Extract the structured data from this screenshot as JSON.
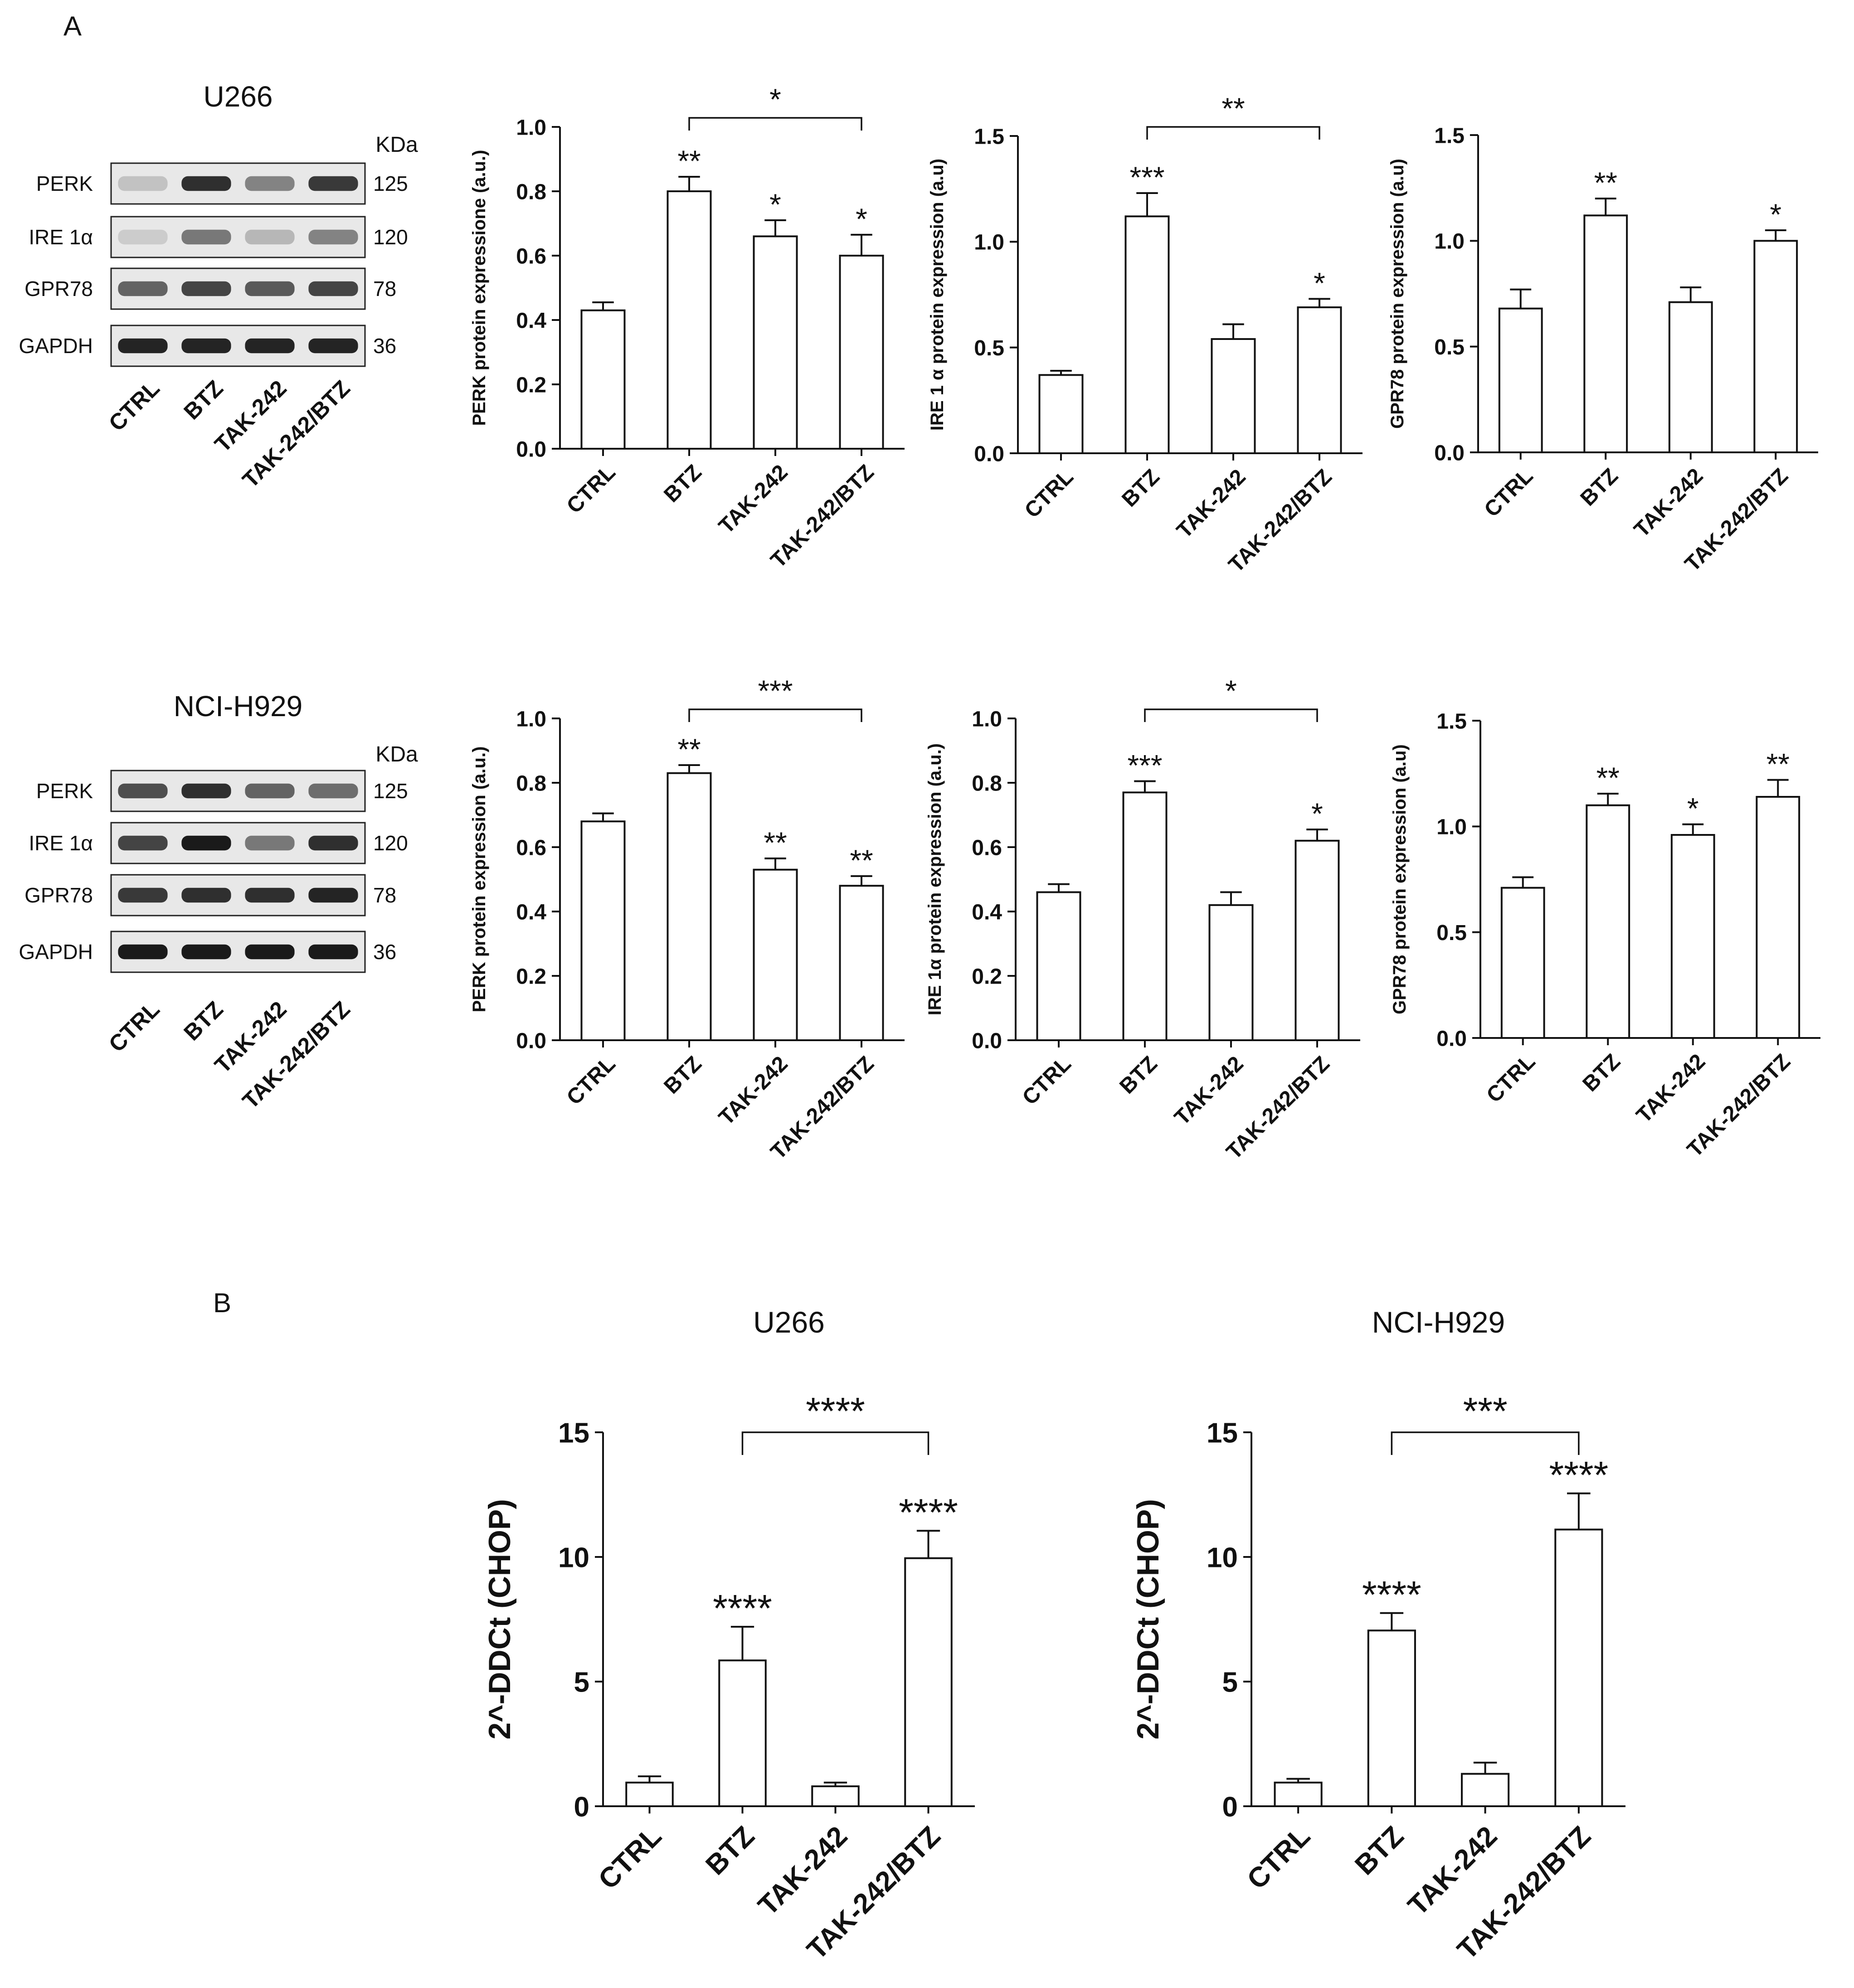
{
  "panel_labels": {
    "a": "A",
    "b": "B"
  },
  "blots": [
    {
      "cell_line": "U266",
      "kda_label": "KDa",
      "rows": [
        {
          "label": "PERK",
          "kda": "125",
          "intensity": [
            0.15,
            0.85,
            0.45,
            0.8
          ]
        },
        {
          "label": "IRE 1α",
          "kda": "120",
          "intensity": [
            0.1,
            0.5,
            0.2,
            0.45
          ]
        },
        {
          "label": "GPR78",
          "kda": "78",
          "intensity": [
            0.6,
            0.75,
            0.65,
            0.75
          ]
        },
        {
          "label": "GAPDH",
          "kda": "36",
          "intensity": [
            0.9,
            0.9,
            0.9,
            0.9
          ]
        }
      ],
      "lanes": [
        "CTRL",
        "BTZ",
        "TAK-242",
        "TAK-242/BTZ"
      ]
    },
    {
      "cell_line": "NCI-H929",
      "kda_label": "KDa",
      "rows": [
        {
          "label": "PERK",
          "kda": "125",
          "intensity": [
            0.7,
            0.85,
            0.6,
            0.55
          ]
        },
        {
          "label": "IRE 1α",
          "kda": "120",
          "intensity": [
            0.75,
            0.95,
            0.5,
            0.85
          ]
        },
        {
          "label": "GPR78",
          "kda": "78",
          "intensity": [
            0.8,
            0.85,
            0.85,
            0.9
          ]
        },
        {
          "label": "GAPDH",
          "kda": "36",
          "intensity": [
            0.95,
            0.95,
            0.95,
            0.95
          ]
        }
      ],
      "lanes": [
        "CTRL",
        "BTZ",
        "TAK-242",
        "TAK-242/BTZ"
      ]
    }
  ],
  "chart_data": [
    {
      "type": "bar",
      "title": "",
      "ylabel": "PERK protein expressione (a.u.)",
      "xlabel": "",
      "categories": [
        "CTRL",
        "BTZ",
        "TAK-242",
        "TAK-242/BTZ"
      ],
      "values": [
        0.43,
        0.8,
        0.66,
        0.6
      ],
      "errors": [
        0.025,
        0.045,
        0.05,
        0.065
      ],
      "ylim": [
        0,
        1.0
      ],
      "yticks": [
        "0.0",
        "0.2",
        "0.4",
        "0.6",
        "0.8",
        "1.0"
      ],
      "stars": [
        "",
        "**",
        "*",
        "*"
      ],
      "bracket": {
        "from": 1,
        "to": 3,
        "label": "*"
      }
    },
    {
      "type": "bar",
      "title": "",
      "ylabel": "IRE 1 α protein expression (a.u)",
      "xlabel": "",
      "categories": [
        "CTRL",
        "BTZ",
        "TAK-242",
        "TAK-242/BTZ"
      ],
      "values": [
        0.37,
        1.12,
        0.54,
        0.69
      ],
      "errors": [
        0.02,
        0.11,
        0.07,
        0.04
      ],
      "ylim": [
        0,
        1.5
      ],
      "yticks": [
        "0.0",
        "0.5",
        "1.0",
        "1.5"
      ],
      "stars": [
        "",
        "***",
        "",
        "*"
      ],
      "bracket": {
        "from": 1,
        "to": 3,
        "label": "**"
      }
    },
    {
      "type": "bar",
      "title": "",
      "ylabel": "GPR78 protein expression (a.u)",
      "xlabel": "",
      "categories": [
        "CTRL",
        "BTZ",
        "TAK-242",
        "TAK-242/BTZ"
      ],
      "values": [
        0.68,
        1.12,
        0.71,
        1.0
      ],
      "errors": [
        0.09,
        0.08,
        0.07,
        0.05
      ],
      "ylim": [
        0,
        1.5
      ],
      "yticks": [
        "0.0",
        "0.5",
        "1.0",
        "1.5"
      ],
      "stars": [
        "",
        "**",
        "",
        "*"
      ],
      "bracket": null
    },
    {
      "type": "bar",
      "title": "",
      "ylabel": "PERK protein expression (a.u.)",
      "xlabel": "",
      "categories": [
        "CTRL",
        "BTZ",
        "TAK-242",
        "TAK-242/BTZ"
      ],
      "values": [
        0.68,
        0.83,
        0.53,
        0.48
      ],
      "errors": [
        0.025,
        0.025,
        0.035,
        0.03
      ],
      "ylim": [
        0,
        1.0
      ],
      "yticks": [
        "0.0",
        "0.2",
        "0.4",
        "0.6",
        "0.8",
        "1.0"
      ],
      "stars": [
        "",
        "**",
        "**",
        "**"
      ],
      "bracket": {
        "from": 1,
        "to": 3,
        "label": "***"
      }
    },
    {
      "type": "bar",
      "title": "",
      "ylabel": "IRE 1α protein expression (a.u.)",
      "xlabel": "",
      "categories": [
        "CTRL",
        "BTZ",
        "TAK-242",
        "TAK-242/BTZ"
      ],
      "values": [
        0.46,
        0.77,
        0.42,
        0.62
      ],
      "errors": [
        0.025,
        0.035,
        0.04,
        0.035
      ],
      "ylim": [
        0,
        1.0
      ],
      "yticks": [
        "0.0",
        "0.2",
        "0.4",
        "0.6",
        "0.8",
        "1.0"
      ],
      "stars": [
        "",
        "***",
        "",
        "*"
      ],
      "bracket": {
        "from": 1,
        "to": 3,
        "label": "*"
      }
    },
    {
      "type": "bar",
      "title": "",
      "ylabel": "GPR78 protein expression (a.u)",
      "xlabel": "",
      "categories": [
        "CTRL",
        "BTZ",
        "TAK-242",
        "TAK-242/BTZ"
      ],
      "values": [
        0.71,
        1.1,
        0.96,
        1.14
      ],
      "errors": [
        0.05,
        0.055,
        0.05,
        0.08
      ],
      "ylim": [
        0,
        1.5
      ],
      "yticks": [
        "0.0",
        "0.5",
        "1.0",
        "1.5"
      ],
      "stars": [
        "",
        "**",
        "*",
        "**"
      ],
      "bracket": null
    },
    {
      "type": "bar",
      "title": "U266",
      "ylabel": "2^-DDCt (CHOP)",
      "xlabel": "",
      "categories": [
        "CTRL",
        "BTZ",
        "TAK-242",
        "TAK-242/BTZ"
      ],
      "values": [
        0.95,
        5.85,
        0.8,
        9.95
      ],
      "errors": [
        0.25,
        1.35,
        0.15,
        1.1
      ],
      "ylim": [
        0,
        15
      ],
      "yticks": [
        "0",
        "5",
        "10",
        "15"
      ],
      "stars": [
        "",
        "****",
        "",
        "****"
      ],
      "bracket": {
        "from": 1,
        "to": 3,
        "label": "****"
      }
    },
    {
      "type": "bar",
      "title": "NCI-H929",
      "ylabel": "2^-DDCt (CHOP)",
      "xlabel": "",
      "categories": [
        "CTRL",
        "BTZ",
        "TAK-242",
        "TAK-242/BTZ"
      ],
      "values": [
        0.95,
        7.05,
        1.3,
        11.1
      ],
      "errors": [
        0.15,
        0.7,
        0.45,
        1.45
      ],
      "ylim": [
        0,
        15
      ],
      "yticks": [
        "0",
        "5",
        "10",
        "15"
      ],
      "stars": [
        "",
        "****",
        "",
        "****"
      ],
      "bracket": {
        "from": 1,
        "to": 3,
        "label": "***"
      }
    }
  ]
}
